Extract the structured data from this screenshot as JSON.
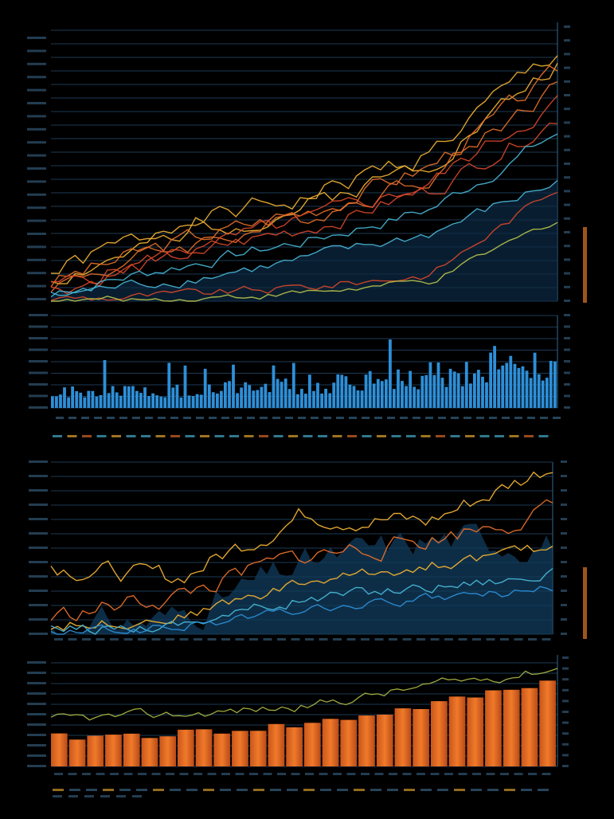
{
  "colors": {
    "background": "#000000",
    "grid": "#1b3a55",
    "axis": "#2f6a93",
    "tick_text": "#3f6f93",
    "side_text": "#c56a1f",
    "gold": "#f2b233",
    "orange": "#e8702a",
    "red": "#d9482b",
    "cyan": "#49b8d8",
    "blue": "#2d8fd8",
    "lime": "#b9c64a",
    "bar_orange": "#f07a2a"
  },
  "chart_data": [
    {
      "type": "line",
      "panel": "top-price",
      "x_points": 64,
      "series": [
        {
          "color_key": "gold",
          "trend": [
            0.1,
            0.28,
            0.38,
            0.55,
            0.92
          ],
          "noise": 0.035,
          "seed": 1
        },
        {
          "color_key": "gold",
          "trend": [
            0.08,
            0.24,
            0.35,
            0.52,
            0.88
          ],
          "noise": 0.03,
          "seed": 2
        },
        {
          "color_key": "orange",
          "trend": [
            0.07,
            0.22,
            0.33,
            0.5,
            0.84
          ],
          "noise": 0.03,
          "seed": 3
        },
        {
          "color_key": "orange",
          "trend": [
            0.06,
            0.2,
            0.31,
            0.47,
            0.8
          ],
          "noise": 0.03,
          "seed": 4
        },
        {
          "color_key": "red",
          "trend": [
            0.05,
            0.18,
            0.29,
            0.44,
            0.74
          ],
          "noise": 0.028,
          "seed": 5
        },
        {
          "color_key": "red",
          "trend": [
            0.04,
            0.16,
            0.27,
            0.41,
            0.68
          ],
          "noise": 0.028,
          "seed": 6
        },
        {
          "color_key": "cyan",
          "trend": [
            0.03,
            0.13,
            0.22,
            0.34,
            0.62
          ],
          "noise": 0.022,
          "seed": 7
        },
        {
          "color_key": "cyan",
          "trend": [
            0.02,
            0.08,
            0.15,
            0.25,
            0.44
          ],
          "noise": 0.02,
          "seed": 8
        },
        {
          "color_key": "red",
          "trend": [
            0.01,
            0.02,
            0.05,
            0.1,
            0.42
          ],
          "noise": 0.015,
          "seed": 9
        },
        {
          "color_key": "lime",
          "trend": [
            0.0,
            0.01,
            0.03,
            0.07,
            0.3
          ],
          "noise": 0.012,
          "seed": 10
        }
      ]
    },
    {
      "type": "bar",
      "panel": "volume",
      "count": 126,
      "trend": [
        0.25,
        0.3,
        0.4,
        0.55,
        0.8
      ],
      "noise": 0.25,
      "seed": 21
    },
    {
      "type": "line",
      "panel": "middle-price",
      "x_points": 80,
      "area": {
        "color_key": "blue",
        "trend": [
          0.02,
          0.1,
          0.4,
          0.55,
          0.55
        ],
        "noise": 0.08,
        "seed": 31
      },
      "series": [
        {
          "color_key": "gold",
          "trend": [
            0.4,
            0.32,
            0.7,
            0.65,
            0.98
          ],
          "noise": 0.05,
          "seed": 32
        },
        {
          "color_key": "orange",
          "trend": [
            0.1,
            0.22,
            0.45,
            0.55,
            0.72
          ],
          "noise": 0.05,
          "seed": 33
        },
        {
          "color_key": "gold",
          "trend": [
            0.05,
            0.1,
            0.3,
            0.4,
            0.5
          ],
          "noise": 0.03,
          "seed": 34
        },
        {
          "color_key": "cyan",
          "trend": [
            0.02,
            0.06,
            0.2,
            0.28,
            0.35
          ],
          "noise": 0.03,
          "seed": 35
        },
        {
          "color_key": "blue",
          "trend": [
            0.0,
            0.04,
            0.14,
            0.2,
            0.26
          ],
          "noise": 0.025,
          "seed": 36
        }
      ]
    },
    {
      "type": "bar",
      "panel": "bottom-bars",
      "count": 28,
      "trend": [
        0.28,
        0.32,
        0.4,
        0.58,
        0.82
      ],
      "noise": 0.04,
      "seed": 41,
      "overlay": {
        "color_key": "lime",
        "trend": [
          0.45,
          0.5,
          0.58,
          0.78,
          0.95
        ],
        "noise": 0.04,
        "seed": 42
      }
    }
  ]
}
